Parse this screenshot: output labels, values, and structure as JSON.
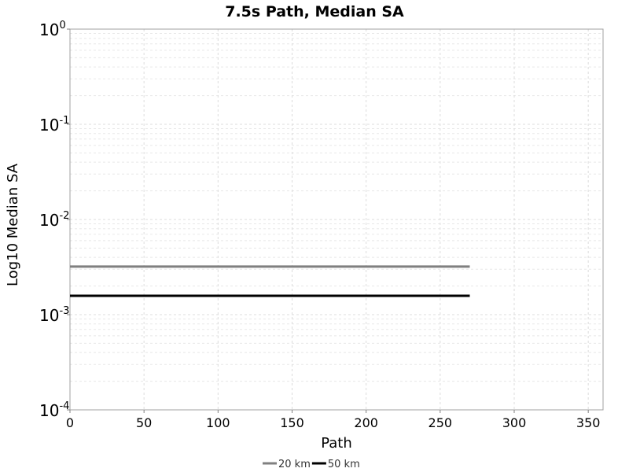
{
  "chart_data": {
    "type": "line",
    "title": "7.5s Path, Median SA",
    "xlabel": "Path",
    "ylabel": "Log10 Median SA",
    "xlim": [
      0,
      360
    ],
    "ylim": [
      0.0001,
      1
    ],
    "yscale": "log",
    "grid": true,
    "legend_position": "bottom-center",
    "xticks": [
      "0",
      "50",
      "100",
      "150",
      "200",
      "250",
      "300",
      "350"
    ],
    "yticks": [
      {
        "base": "10",
        "exp": "0",
        "value": 1
      },
      {
        "base": "10",
        "exp": "-1",
        "value": 0.1
      },
      {
        "base": "10",
        "exp": "-2",
        "value": 0.01
      },
      {
        "base": "10",
        "exp": "-3",
        "value": 0.001
      },
      {
        "base": "10",
        "exp": "-4",
        "value": 0.0001
      }
    ],
    "series": [
      {
        "name": "20 km",
        "color": "#808080",
        "x": [
          0,
          270
        ],
        "y": [
          0.0032,
          0.0032
        ]
      },
      {
        "name": "50 km",
        "color": "#000000",
        "x": [
          0,
          270
        ],
        "y": [
          0.00158,
          0.00158
        ]
      }
    ]
  }
}
